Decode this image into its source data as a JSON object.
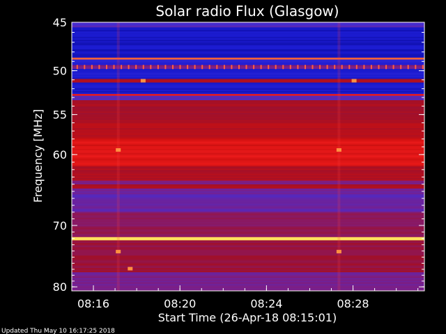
{
  "chart_data": {
    "type": "heatmap",
    "title": "Solar radio Flux (Glasgow)",
    "xlabel": "Start Time (26-Apr-18 08:15:01)",
    "ylabel": "Frequency [MHz]",
    "footer": "Updated Thu May 10 16:17:25 2018",
    "x_range_min": [
      15.0,
      31.3
    ],
    "x_ticks": [
      {
        "min": 16,
        "label": "08:16"
      },
      {
        "min": 20,
        "label": "08:20"
      },
      {
        "min": 24,
        "label": "08:24"
      },
      {
        "min": 28,
        "label": "08:28"
      }
    ],
    "y_range_mhz": [
      45,
      80.7
    ],
    "y_scale": "log",
    "y_ticks": [
      {
        "mhz": 45,
        "label": "45"
      },
      {
        "mhz": 50,
        "label": "50"
      },
      {
        "mhz": 55,
        "label": "55"
      },
      {
        "mhz": 60,
        "label": "60"
      },
      {
        "mhz": 70,
        "label": "70"
      },
      {
        "mhz": 80,
        "label": "80"
      }
    ],
    "colormap": [
      "#000080",
      "#1b1bd0",
      "#3a2fe0",
      "#7a1f8a",
      "#a0102a",
      "#cc1010",
      "#ff2020",
      "#ffff66"
    ],
    "bands": [
      {
        "f0": 45.0,
        "f1": 45.5,
        "level": 0.32
      },
      {
        "f0": 45.5,
        "f1": 48.6,
        "level": 0.12
      },
      {
        "f0": 48.6,
        "f1": 48.8,
        "level": 0.9
      },
      {
        "f0": 48.8,
        "f1": 49.4,
        "level": 0.18
      },
      {
        "f0": 49.4,
        "f1": 49.8,
        "level": 0.45
      },
      {
        "f0": 49.8,
        "f1": 50.9,
        "level": 0.15
      },
      {
        "f0": 50.9,
        "f1": 51.3,
        "level": 0.6
      },
      {
        "f0": 51.3,
        "f1": 52.6,
        "level": 0.14
      },
      {
        "f0": 52.6,
        "f1": 52.8,
        "level": 0.8
      },
      {
        "f0": 52.8,
        "f1": 53.3,
        "level": 0.35
      },
      {
        "f0": 53.3,
        "f1": 56.0,
        "level": 0.6
      },
      {
        "f0": 56.0,
        "f1": 58.0,
        "level": 0.65
      },
      {
        "f0": 58.0,
        "f1": 61.5,
        "level": 0.76
      },
      {
        "f0": 61.5,
        "f1": 63.5,
        "level": 0.62
      },
      {
        "f0": 63.5,
        "f1": 64.0,
        "level": 0.45
      },
      {
        "f0": 64.0,
        "f1": 64.6,
        "level": 0.6
      },
      {
        "f0": 64.6,
        "f1": 68.0,
        "level": 0.38
      },
      {
        "f0": 68.0,
        "f1": 71.8,
        "level": 0.5
      },
      {
        "f0": 71.8,
        "f1": 72.3,
        "level": 0.98
      },
      {
        "f0": 72.3,
        "f1": 77.5,
        "level": 0.55
      },
      {
        "f0": 77.5,
        "f1": 80.7,
        "level": 0.42
      }
    ],
    "pulse_band_mhz": 49.6,
    "pulse_period_min": 0.34,
    "bursts": [
      {
        "t_min": 17.15,
        "mhz": 59.4
      },
      {
        "t_min": 27.35,
        "mhz": 59.4
      },
      {
        "t_min": 17.15,
        "mhz": 74.1
      },
      {
        "t_min": 27.35,
        "mhz": 74.1
      },
      {
        "t_min": 18.3,
        "mhz": 51.1
      },
      {
        "t_min": 28.05,
        "mhz": 51.1
      },
      {
        "t_min": 17.7,
        "mhz": 76.9
      }
    ],
    "vertical_artifacts_min": [
      17.15,
      27.35
    ]
  }
}
